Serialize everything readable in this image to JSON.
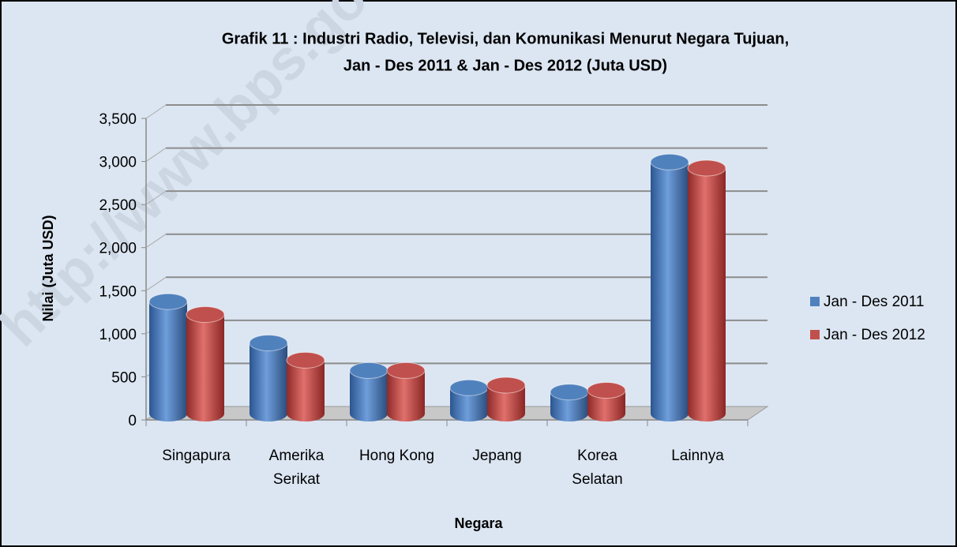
{
  "chart_data": {
    "type": "bar3d",
    "title": "Grafik 11 : Industri Radio, Televisi, dan Komunikasi Menurut Negara Tujuan,",
    "subtitle": "Jan - Des 2011 & Jan - Des 2012 (Juta USD)",
    "y_label": "Nilai (Juta USD)",
    "x_label": "Negara",
    "watermark": "http://www.bps.go.id",
    "categories": [
      "Singapura",
      "Amerika Serikat",
      "Hong Kong",
      "Jepang",
      "Korea Selatan",
      "Lainnya"
    ],
    "series": [
      {
        "name": "Jan - Des 2011",
        "color": "#4f81bd",
        "values": [
          1300,
          820,
          500,
          300,
          250,
          2920
        ]
      },
      {
        "name": "Jan - Des 2012",
        "color": "#c0504d",
        "values": [
          1150,
          620,
          500,
          330,
          270,
          2850
        ]
      }
    ],
    "ylim": [
      0,
      3500
    ],
    "yticks": [
      0,
      500,
      {
        "value": 1000,
        "label": "1,000"
      },
      {
        "value": 1500,
        "label": "1,500"
      },
      {
        "value": 2000,
        "label": "2,000"
      },
      {
        "value": 2500,
        "label": "2,500"
      },
      {
        "value": 3000,
        "label": "3,000"
      },
      {
        "value": 3500,
        "label": "3,500"
      }
    ],
    "grid": true,
    "legend": "right"
  }
}
